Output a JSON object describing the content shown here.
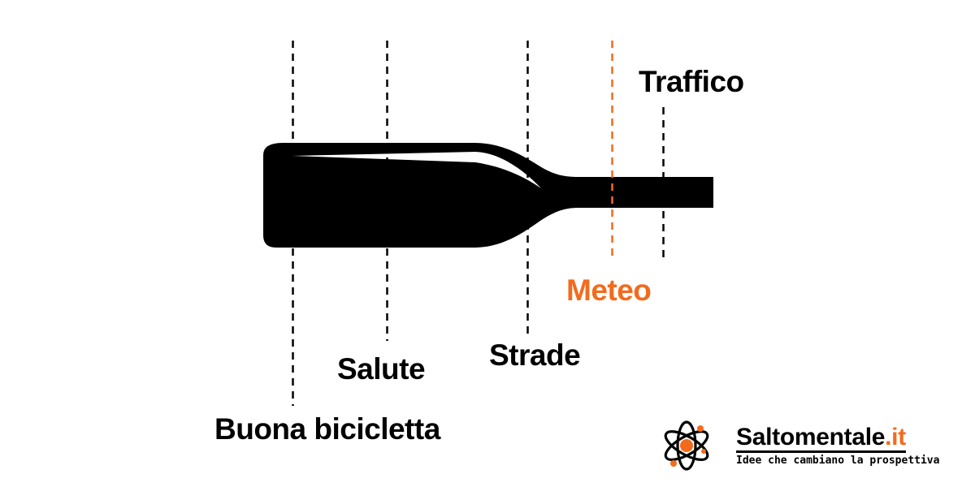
{
  "labels": {
    "traffico": "Traffico",
    "meteo": "Meteo",
    "strade": "Strade",
    "salute": "Salute",
    "buona_bicicletta": "Buona bicicletta"
  },
  "brand": {
    "name_main": "Saltomentale",
    "name_tld": ".it",
    "tagline": "Idee che cambiano la prospettiva",
    "logo_icon": "atom-icon"
  },
  "colors": {
    "ink": "#000000",
    "accent": "#f26b1d",
    "background": "#ffffff"
  }
}
